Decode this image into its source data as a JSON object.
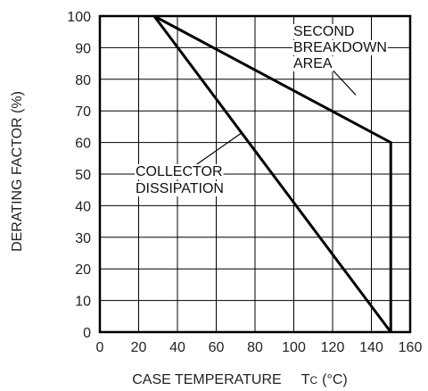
{
  "chart_data": {
    "type": "line",
    "xlabel": "CASE TEMPERATURE",
    "xlabel_symbol": "T",
    "xlabel_subscript": "C",
    "xlabel_unit": "(°C)",
    "ylabel": "DERATING FACTOR (%)",
    "xlim": [
      0,
      160
    ],
    "ylim": [
      0,
      100
    ],
    "x_ticks": [
      "0",
      "20",
      "40",
      "60",
      "80",
      "100",
      "120",
      "140",
      "160"
    ],
    "y_ticks": [
      "0",
      "10",
      "20",
      "30",
      "40",
      "50",
      "60",
      "70",
      "80",
      "90",
      "100"
    ],
    "grid": true,
    "series": [
      {
        "name": "COLLECTOR DISSIPATION",
        "points": [
          [
            28,
            100
          ],
          [
            150,
            0
          ]
        ]
      },
      {
        "name": "SECOND BREAKDOWN AREA",
        "points": [
          [
            28,
            100
          ],
          [
            150,
            60
          ],
          [
            150,
            0
          ]
        ]
      }
    ],
    "annotations": [
      {
        "lines": [
          "SECOND",
          "BREAKDOWN",
          "AREA"
        ],
        "points_to": [
          132,
          75
        ]
      },
      {
        "lines": [
          "COLLECTOR",
          "DISSIPATION"
        ],
        "points_to": [
          73,
          63
        ]
      }
    ]
  }
}
